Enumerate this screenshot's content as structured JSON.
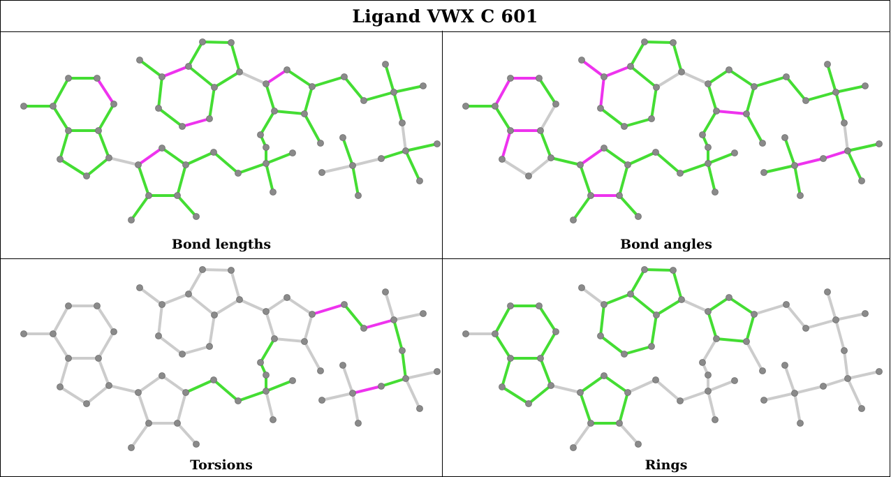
{
  "title": "Ligand VWX C 601",
  "panels": [
    {
      "id": "bond-lengths",
      "caption": "Bond lengths"
    },
    {
      "id": "bond-angles",
      "caption": "Bond angles"
    },
    {
      "id": "torsions",
      "caption": "Torsions"
    },
    {
      "id": "rings",
      "caption": "Rings"
    }
  ],
  "colors": {
    "ok": "#44dd33",
    "outlier": "#ee33ee",
    "neutral": "#cccccc",
    "atom": "#8a8a8a"
  }
}
